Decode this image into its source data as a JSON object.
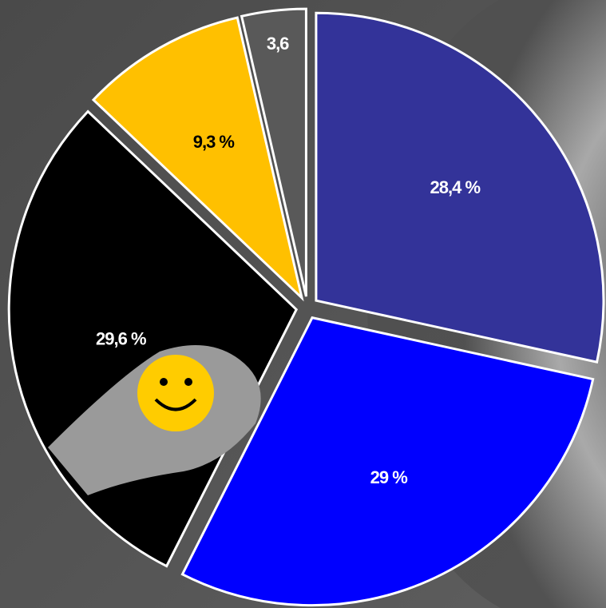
{
  "chart_data": {
    "type": "pie",
    "values": [
      28.4,
      29,
      29.6,
      9.3,
      3.6
    ],
    "value_labels": [
      "28,4 %",
      "29 %",
      "29,6 %",
      "9,3 %",
      "3,6"
    ],
    "colors": [
      "#333399",
      "#0000ff",
      "#000000",
      "#ffc000",
      "#595959"
    ],
    "label_colors": [
      "#ffffff",
      "#ffffff",
      "#ffffff",
      "#000000",
      "#ffffff"
    ]
  }
}
